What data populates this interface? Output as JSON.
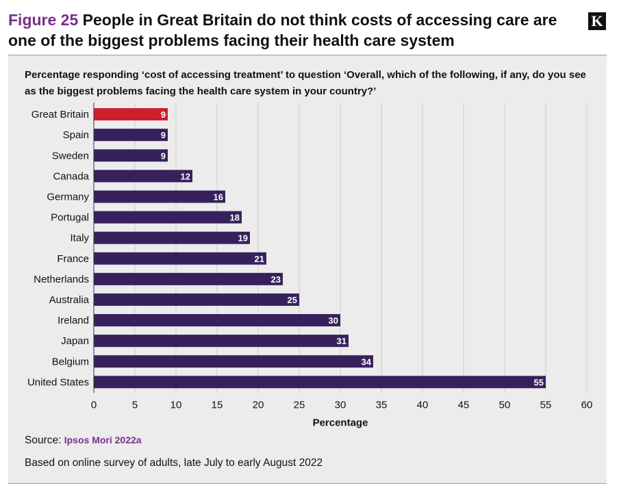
{
  "header": {
    "figure_label": "Figure 25",
    "title": "People in Great Britain do not think costs of accessing care are one of the biggest problems facing their health care system",
    "logo": "K"
  },
  "subtitle": "Percentage responding ‘cost of accessing treatment’ to question ‘Overall, which of the following, if any, do you see as the biggest problems facing the health care system in your country?’",
  "footer": {
    "source_label": "Source:",
    "source_link": "Ipsos Mori 2022a",
    "note": "Based on online survey of adults, late July to early August 2022"
  },
  "colors": {
    "highlight": "#cc1f2e",
    "bar": "#36215c",
    "accent": "#7b2d8e",
    "grid": "#cccccc"
  },
  "chart_data": {
    "type": "bar",
    "orientation": "horizontal",
    "categories": [
      "Great Britain",
      "Spain",
      "Sweden",
      "Canada",
      "Germany",
      "Portugal",
      "Italy",
      "France",
      "Netherlands",
      "Australia",
      "Ireland",
      "Japan",
      "Belgium",
      "United States"
    ],
    "values": [
      9,
      9,
      9,
      12,
      16,
      18,
      19,
      21,
      23,
      25,
      30,
      31,
      34,
      55
    ],
    "highlight_category": "Great Britain",
    "xlabel": "Percentage",
    "ylabel": "",
    "xlim": [
      0,
      60
    ],
    "xticks": [
      0,
      5,
      10,
      15,
      20,
      25,
      30,
      35,
      40,
      45,
      50,
      55,
      60
    ],
    "grid": "vertical",
    "data_labels": true
  }
}
